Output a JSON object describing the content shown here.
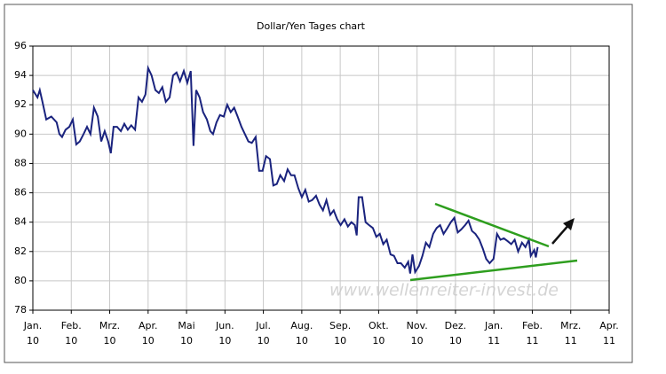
{
  "chart_data": {
    "type": "line",
    "title": "Dollar/Yen Tages chart",
    "watermark": "www.wellenreiter-invest.de",
    "xlim": [
      0,
      15
    ],
    "xticks": [
      {
        "value": 0,
        "label": "Jan."
      },
      {
        "value": 1,
        "label": "Feb."
      },
      {
        "value": 2,
        "label": "Mrz."
      },
      {
        "value": 3,
        "label": "Apr."
      },
      {
        "value": 4,
        "label": "Mai"
      },
      {
        "value": 5,
        "label": "Jun."
      },
      {
        "value": 6,
        "label": "Jul."
      },
      {
        "value": 7,
        "label": "Aug."
      },
      {
        "value": 8,
        "label": "Sep."
      },
      {
        "value": 9,
        "label": "Okt."
      },
      {
        "value": 10,
        "label": "Nov."
      },
      {
        "value": 11,
        "label": "Dez."
      },
      {
        "value": 12,
        "label": "Jan."
      },
      {
        "value": 13,
        "label": "Feb."
      },
      {
        "value": 14,
        "label": "Mrz."
      },
      {
        "value": 15,
        "label": "Apr."
      }
    ],
    "xtick_years": [
      "10",
      "10",
      "10",
      "10",
      "10",
      "10",
      "10",
      "10",
      "10",
      "10",
      "10",
      "10",
      "11",
      "11",
      "11",
      "11"
    ],
    "ylim": [
      78,
      96
    ],
    "yticks": [
      78,
      80,
      82,
      84,
      86,
      88,
      90,
      92,
      94,
      96
    ],
    "grid": true,
    "series": [
      {
        "color": "#1a237e",
        "x": [
          0,
          0.12,
          0.18,
          0.25,
          0.35,
          0.48,
          0.62,
          0.69,
          0.76,
          0.85,
          0.95,
          1.04,
          1.13,
          1.22,
          1.32,
          1.41,
          1.5,
          1.59,
          1.69,
          1.78,
          1.87,
          1.96,
          2.03,
          2.1,
          2.19,
          2.29,
          2.38,
          2.47,
          2.56,
          2.66,
          2.75,
          2.84,
          2.93,
          3.0,
          3.09,
          3.19,
          3.28,
          3.37,
          3.46,
          3.56,
          3.65,
          3.74,
          3.83,
          3.93,
          4.02,
          4.11,
          4.18,
          4.25,
          4.34,
          4.43,
          4.53,
          4.62,
          4.69,
          4.78,
          4.87,
          4.97,
          5.06,
          5.15,
          5.24,
          5.33,
          5.43,
          5.52,
          5.61,
          5.7,
          5.8,
          5.89,
          5.98,
          6.07,
          6.17,
          6.26,
          6.35,
          6.44,
          6.54,
          6.63,
          6.72,
          6.81,
          6.91,
          7.0,
          7.09,
          7.18,
          7.27,
          7.37,
          7.46,
          7.55,
          7.64,
          7.74,
          7.83,
          7.92,
          8.01,
          8.11,
          8.2,
          8.29,
          8.38,
          8.43,
          8.48,
          8.57,
          8.66,
          8.75,
          8.85,
          8.94,
          9.03,
          9.12,
          9.21,
          9.31,
          9.4,
          9.49,
          9.58,
          9.68,
          9.77,
          9.82,
          9.88,
          9.95,
          10.05,
          10.14,
          10.23,
          10.32,
          10.42,
          10.51,
          10.6,
          10.69,
          10.79,
          10.88,
          10.97,
          11.06,
          11.15,
          11.25,
          11.34,
          11.43,
          11.52,
          11.62,
          11.71,
          11.8,
          11.89,
          11.99,
          12.08,
          12.17,
          12.26,
          12.36,
          12.45,
          12.54,
          12.63,
          12.73,
          12.82,
          12.91,
          12.96,
          13.05,
          13.09,
          13.14
        ],
        "values": [
          93,
          92.5,
          93,
          92.2,
          91,
          91.2,
          90.8,
          90,
          89.8,
          90.3,
          90.5,
          91,
          89.3,
          89.5,
          90,
          90.5,
          90,
          91.8,
          91.2,
          89.5,
          90.2,
          89.5,
          88.7,
          90.5,
          90.5,
          90.2,
          90.7,
          90.3,
          90.6,
          90.3,
          92.5,
          92.2,
          92.7,
          94.5,
          94,
          93,
          92.8,
          93.2,
          92.2,
          92.5,
          94,
          94.2,
          93.6,
          94.3,
          93.5,
          94.3,
          89.2,
          93,
          92.5,
          91.5,
          91,
          90.2,
          90,
          90.8,
          91.3,
          91.2,
          92,
          91.5,
          91.8,
          91.2,
          90.5,
          90,
          89.5,
          89.4,
          89.8,
          87.5,
          87.5,
          88.5,
          88.3,
          86.5,
          86.6,
          87.2,
          86.8,
          87.6,
          87.2,
          87.2,
          86.3,
          85.7,
          86.2,
          85.4,
          85.5,
          85.8,
          85.2,
          84.8,
          85.5,
          84.5,
          84.8,
          84.2,
          83.8,
          84.2,
          83.7,
          84,
          83.8,
          83.1,
          85.7,
          85.7,
          84,
          83.8,
          83.6,
          83,
          83.2,
          82.5,
          82.8,
          81.8,
          81.7,
          81.2,
          81.2,
          80.9,
          81.3,
          80.5,
          81.8,
          80.6,
          81,
          81.7,
          82.6,
          82.3,
          83.2,
          83.6,
          83.8,
          83.2,
          83.6,
          84,
          84.3,
          83.3,
          83.5,
          83.8,
          84.1,
          83.4,
          83.2,
          82.8,
          82.2,
          81.5,
          81.2,
          81.5,
          83.2,
          82.8,
          82.9,
          82.7,
          82.5,
          82.8,
          82,
          82.6,
          82.3,
          82.8,
          81.7,
          82.1,
          81.6,
          82.3
        ]
      }
    ]
  }
}
